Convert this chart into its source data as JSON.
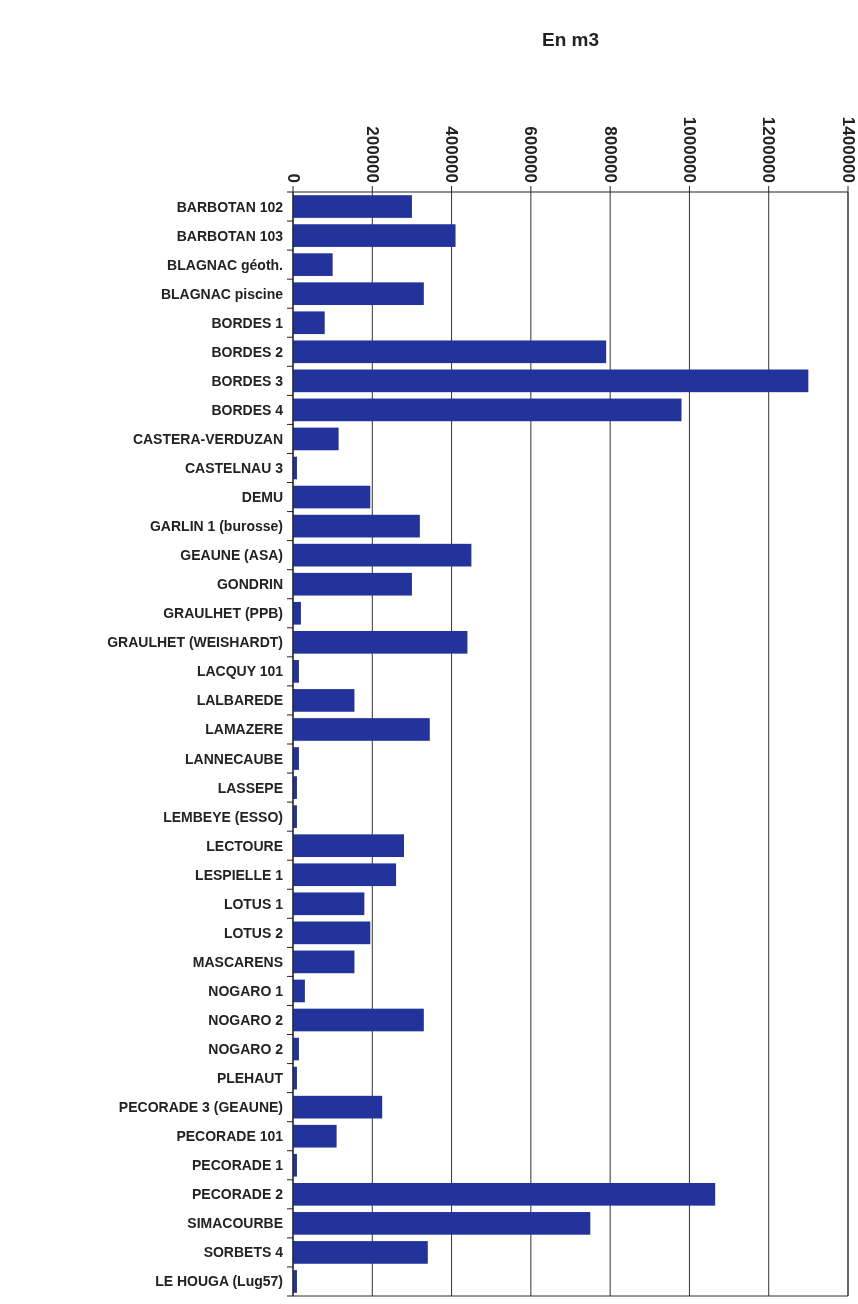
{
  "chart_data": {
    "type": "bar",
    "orientation": "horizontal",
    "xlabel": "En m3",
    "categories": [
      "BARBOTAN 102",
      "BARBOTAN 103",
      "BLAGNAC géoth.",
      "BLAGNAC piscine",
      "BORDES 1",
      "BORDES 2",
      "BORDES 3",
      "BORDES 4",
      "CASTERA-VERDUZAN",
      "CASTELNAU 3",
      "DEMU",
      "GARLIN 1 (burosse)",
      "GEAUNE (ASA)",
      "GONDRIN",
      "GRAULHET (PPB)",
      "GRAULHET (WEISHARDT)",
      "LACQUY 101",
      "LALBAREDE",
      "LAMAZERE",
      "LANNECAUBE",
      "LASSEPE",
      "LEMBEYE (ESSO)",
      "LECTOURE",
      "LESPIELLE 1",
      "LOTUS 1",
      "LOTUS 2",
      "MASCARENS",
      "NOGARO 1",
      "NOGARO 2",
      "NOGARO 2",
      "PLEHAUT",
      "PECORADE 3 (GEAUNE)",
      "PECORADE 101",
      "PECORADE 1",
      "PECORADE 2",
      "SIMACOURBE",
      "SORBETS 4",
      "LE HOUGA (Lug57)"
    ],
    "values": [
      300000,
      410000,
      100000,
      330000,
      80000,
      790000,
      1300000,
      980000,
      115000,
      10000,
      195000,
      320000,
      450000,
      300000,
      20000,
      440000,
      15000,
      155000,
      345000,
      15000,
      10000,
      10000,
      280000,
      260000,
      180000,
      195000,
      155000,
      30000,
      330000,
      15000,
      10000,
      225000,
      110000,
      10000,
      1065000,
      750000,
      340000,
      10000
    ],
    "color": "#22339c",
    "xlim": [
      0,
      1400000
    ],
    "xticks": [
      0,
      200000,
      400000,
      600000,
      800000,
      1000000,
      1200000,
      1400000
    ],
    "grid": "x"
  }
}
